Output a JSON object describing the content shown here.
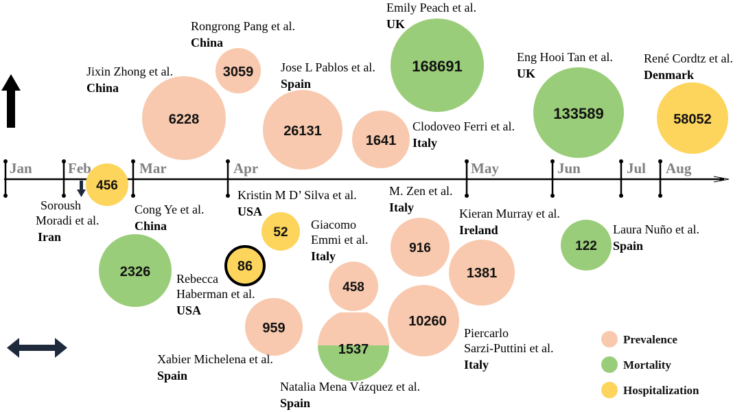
{
  "colors": {
    "prevalence": "#F8C9AE",
    "mortality": "#9ACD79",
    "hospitalization": "#FDD55C",
    "axis": "#000000",
    "month_label": "#808080"
  },
  "months": [
    "Jan",
    "Feb",
    "Mar",
    "Apr",
    "May",
    "Jun",
    "Jul",
    "Aug"
  ],
  "legend": [
    {
      "label": "Prevalence",
      "category": "prevalence"
    },
    {
      "label": "Mortality",
      "category": "mortality"
    },
    {
      "label": "Hospitalization",
      "category": "hospitalization"
    }
  ],
  "icons": {
    "up_arrow": "vertical-arrow-icon",
    "double_arrow": "horizontal-double-arrow-icon",
    "small_down_arrow": "down-arrow-icon"
  },
  "studies": [
    {
      "id": "zhong",
      "value": "6228",
      "category": "prevalence",
      "author": "Jixin Zhong et al.",
      "country": "China"
    },
    {
      "id": "pang",
      "value": "3059",
      "category": "prevalence",
      "author": "Rongrong Pang et al.",
      "country": "China"
    },
    {
      "id": "pablos",
      "value": "26131",
      "category": "prevalence",
      "author": "Jose L Pablos et al.",
      "country": "Spain"
    },
    {
      "id": "peach",
      "value": "168691",
      "category": "mortality",
      "author": "Emily Peach et al.",
      "country": "UK"
    },
    {
      "id": "ferri",
      "value": "1641",
      "category": "prevalence",
      "author": "Clodoveo Ferri et al.",
      "country": "Italy"
    },
    {
      "id": "tan",
      "value": "133589",
      "category": "mortality",
      "author": "Eng Hooi Tan et al.",
      "country": "UK"
    },
    {
      "id": "cordtz",
      "value": "58052",
      "category": "hospitalization",
      "author": "René Cordtz et al.",
      "country": "Denmark"
    },
    {
      "id": "moradi",
      "value": "456",
      "category": "hospitalization",
      "author_lines": [
        "Soroush",
        "Moradi et al."
      ],
      "country": "Iran"
    },
    {
      "id": "ye",
      "value": "2326",
      "category": "mortality",
      "author": "Cong Ye et al.",
      "country": "China"
    },
    {
      "id": "dsilva",
      "value": "52",
      "category": "hospitalization",
      "author": "Kristin M D’ Silva et al.",
      "country": "USA"
    },
    {
      "id": "haberman",
      "value": "86",
      "category": "hospitalization",
      "author_lines": [
        "Rebecca",
        "Haberman et al."
      ],
      "country": "USA"
    },
    {
      "id": "michelena",
      "value": "959",
      "category": "prevalence",
      "author": "Xabier Michelena et al.",
      "country": "Spain"
    },
    {
      "id": "emmi",
      "value": "458",
      "category": "prevalence",
      "author_lines": [
        "Giacomo",
        "Emmi et al."
      ],
      "country": "Italy"
    },
    {
      "id": "mena",
      "value": "1537",
      "category": "prevalence+mortality",
      "author": "Natalia Mena Vázquez et al.",
      "country": "Spain"
    },
    {
      "id": "zen",
      "value": "916",
      "category": "prevalence",
      "author": "M. Zen et al.",
      "country": "Italy"
    },
    {
      "id": "sarzi",
      "value": "10260",
      "category": "prevalence",
      "author_lines": [
        "Piercarlo",
        "Sarzi-Puttini et al."
      ],
      "country": "Italy"
    },
    {
      "id": "murray",
      "value": "1381",
      "category": "prevalence",
      "author": "Kieran Murray et al.",
      "country": "Ireland"
    },
    {
      "id": "nuno",
      "value": "122",
      "category": "mortality",
      "author": "Laura Nuño et al.",
      "country": "Spain"
    }
  ]
}
